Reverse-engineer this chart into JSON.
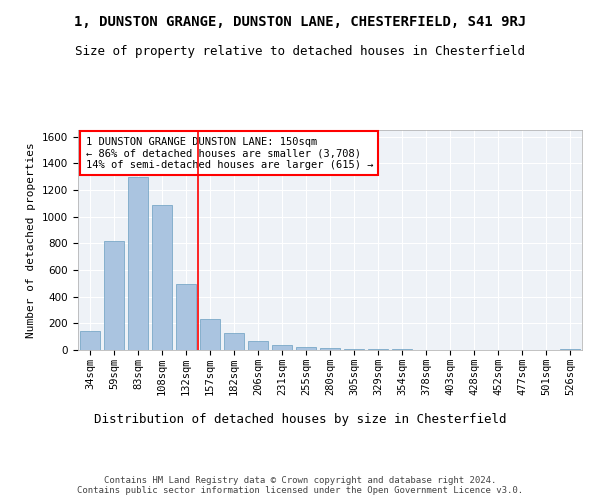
{
  "title": "1, DUNSTON GRANGE, DUNSTON LANE, CHESTERFIELD, S41 9RJ",
  "subtitle": "Size of property relative to detached houses in Chesterfield",
  "xlabel": "Distribution of detached houses by size in Chesterfield",
  "ylabel": "Number of detached properties",
  "categories": [
    "34sqm",
    "59sqm",
    "83sqm",
    "108sqm",
    "132sqm",
    "157sqm",
    "182sqm",
    "206sqm",
    "231sqm",
    "255sqm",
    "280sqm",
    "305sqm",
    "329sqm",
    "354sqm",
    "378sqm",
    "403sqm",
    "428sqm",
    "452sqm",
    "477sqm",
    "501sqm",
    "526sqm"
  ],
  "values": [
    140,
    815,
    1300,
    1090,
    495,
    235,
    130,
    65,
    38,
    25,
    15,
    10,
    8,
    5,
    3,
    2,
    2,
    1,
    1,
    1,
    10
  ],
  "bar_color": "#aac4e0",
  "bar_edgecolor": "#6a9fc0",
  "vline_pos": 4.5,
  "vline_color": "red",
  "annotation_text": "1 DUNSTON GRANGE DUNSTON LANE: 150sqm\n← 86% of detached houses are smaller (3,708)\n14% of semi-detached houses are larger (615) →",
  "annotation_box_edgecolor": "red",
  "annotation_box_facecolor": "white",
  "ylim": [
    0,
    1650
  ],
  "yticks": [
    0,
    200,
    400,
    600,
    800,
    1000,
    1200,
    1400,
    1600
  ],
  "bg_color": "#eef2f7",
  "grid_color": "white",
  "footer": "Contains HM Land Registry data © Crown copyright and database right 2024.\nContains public sector information licensed under the Open Government Licence v3.0.",
  "title_fontsize": 10,
  "subtitle_fontsize": 9,
  "xlabel_fontsize": 9,
  "ylabel_fontsize": 8,
  "tick_fontsize": 7.5,
  "annotation_fontsize": 7.5,
  "footer_fontsize": 6.5
}
